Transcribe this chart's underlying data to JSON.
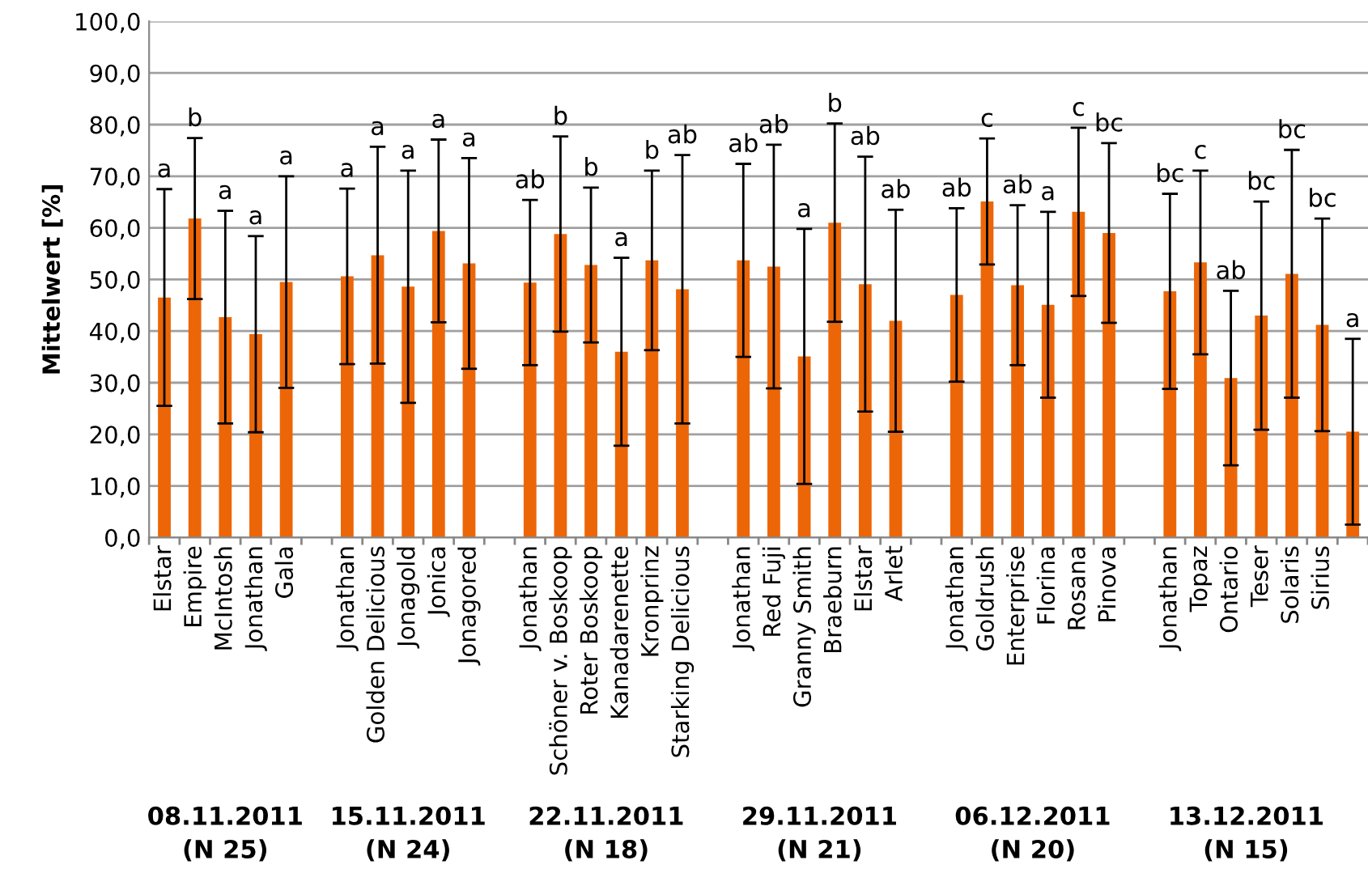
{
  "chart_data": {
    "type": "bar",
    "ylabel": "Mittelwert [%]",
    "categories": [
      "Elstar",
      "Empire",
      "McIntosh",
      "Jonathan",
      "Gala",
      null,
      "Jonathan",
      "Golden Delicious",
      "Jonagold",
      "Jonica",
      "Jonagored",
      null,
      "Jonathan",
      "Schöner v. Boskoop",
      "Roter Boskoop",
      "Kanadarenette",
      "Kronprinz",
      "Starking Delicious",
      null,
      "Jonathan",
      "Red Fuji",
      "Granny Smith",
      "Braeburn",
      "Elstar",
      "Arlet",
      null,
      "Jonathan",
      "Goldrush",
      "Enterprise",
      "Florina",
      "Rosana",
      "Pinova",
      null,
      "Jonathan",
      "Topaz",
      "Ontario",
      "Teser",
      "Solaris",
      "Sirius",
      null
    ],
    "values": [
      46.5,
      61.8,
      42.7,
      39.4,
      49.5,
      null,
      50.6,
      54.7,
      48.6,
      59.4,
      53.1,
      null,
      49.4,
      58.8,
      52.8,
      36.0,
      53.7,
      48.1,
      null,
      53.7,
      52.5,
      35.1,
      61.0,
      49.1,
      42.0,
      null,
      47.0,
      65.1,
      48.9,
      45.1,
      63.1,
      59.0,
      null,
      47.7,
      53.3,
      30.9,
      43.0,
      51.1,
      41.2,
      20.5
    ],
    "errors": [
      21,
      15.6,
      20.6,
      19,
      20.5,
      null,
      17,
      21,
      22.5,
      17.7,
      20.4,
      null,
      16,
      18.9,
      15,
      18.2,
      17.4,
      26,
      null,
      18.7,
      23.6,
      24.7,
      19.2,
      24.7,
      21.5,
      null,
      16.8,
      12.2,
      15.5,
      18,
      16.3,
      17.4,
      null,
      18.9,
      17.8,
      16.9,
      22.1,
      24,
      20.6,
      18
    ],
    "color": "#ec6608",
    "ylim": [
      0,
      100
    ],
    "yticks": [
      {
        "value": 0,
        "label": "0,0"
      },
      {
        "value": 10,
        "label": "10,0"
      },
      {
        "value": 20,
        "label": "20,0"
      },
      {
        "value": 30,
        "label": "30,0"
      },
      {
        "value": 40,
        "label": "40,0"
      },
      {
        "value": 50,
        "label": "50,0"
      },
      {
        "value": 60,
        "label": "60,0"
      },
      {
        "value": 70,
        "label": "70,0"
      },
      {
        "value": 80,
        "label": "80,0"
      },
      {
        "value": 90,
        "label": "90,0"
      },
      {
        "value": 100,
        "label": "100,0"
      }
    ],
    "grid": "y",
    "annotations": [
      "a",
      "b",
      "a",
      "a",
      "a",
      "a",
      "a",
      "a",
      "a",
      "a",
      "ab",
      "b",
      "b",
      "a",
      "b",
      "ab",
      "ab",
      "ab",
      "a",
      "b",
      "ab",
      "ab",
      "ab",
      "c",
      "ab",
      "a",
      "c",
      "bc",
      "bc",
      "c",
      "ab",
      "bc",
      "bc",
      "bc",
      "a",
      "08.11.2011\n(N 25)",
      "15.11.2011\n(N 24)",
      "22.11.2011\n(N 18)",
      "29.11.2011\n(N 21)",
      "06.12.2011\n(N 20)",
      "13.12.2011\n(N 15)"
    ]
  }
}
